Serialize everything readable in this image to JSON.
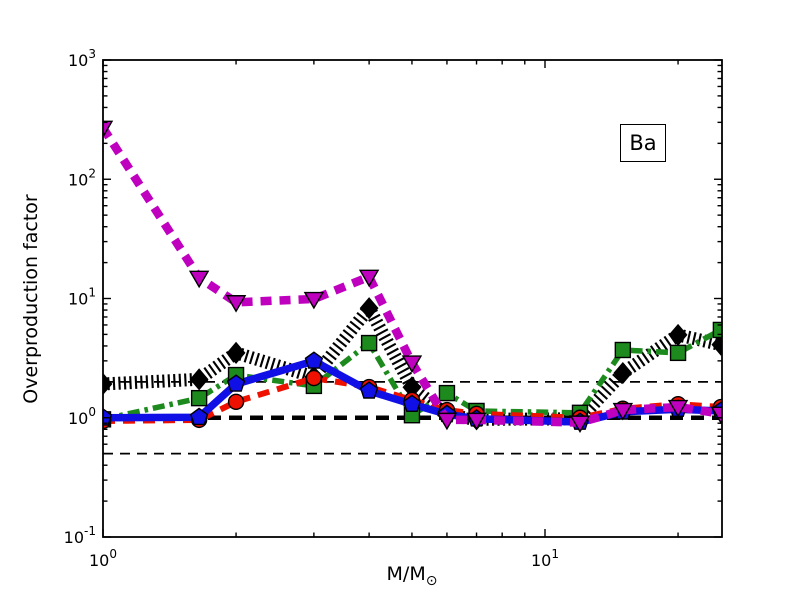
{
  "figure": {
    "background": "#ffffff",
    "ylabel": "Overproduction factor",
    "xlabel_main": "M/M",
    "xlabel_sub": "⊙",
    "annotation_box": "Ba"
  },
  "chart_data": {
    "type": "line",
    "title": "",
    "xlabel": "M/M⊙",
    "ylabel": "Overproduction factor",
    "x_scale": "log",
    "y_scale": "log",
    "xlim": [
      1,
      25.1
    ],
    "ylim": [
      0.1,
      1000
    ],
    "grid": false,
    "legend": "none",
    "annotation": "Ba",
    "x": [
      1,
      1.65,
      2,
      3,
      4,
      5,
      6,
      7,
      12,
      15,
      20,
      25
    ],
    "series": [
      {
        "name": "black-hatched-diamonds",
        "color": "#000000",
        "line": "hatched",
        "marker": "diamond",
        "values": [
          1.92,
          2.1,
          3.5,
          2.2,
          8.3,
          1.8,
          1.05,
          0.97,
          0.98,
          2.37,
          4.95,
          4.1
        ]
      },
      {
        "name": "green-dashdot-squares",
        "color": "#1d8a1d",
        "line": "dash-dot",
        "marker": "square",
        "values": [
          0.97,
          1.46,
          2.28,
          1.85,
          4.23,
          1.05,
          1.61,
          1.14,
          1.1,
          3.7,
          3.5,
          5.45
        ]
      },
      {
        "name": "red-dashed-circles",
        "color": "#ee1100",
        "line": "dashed",
        "marker": "circle",
        "values": [
          0.94,
          0.96,
          1.36,
          2.15,
          1.81,
          1.41,
          1.16,
          1.08,
          1.0,
          1.19,
          1.3,
          1.23
        ]
      },
      {
        "name": "blue-solid-pentagons",
        "color": "#1010e6",
        "line": "solid",
        "marker": "pentagon",
        "values": [
          1.0,
          1.01,
          1.92,
          2.99,
          1.68,
          1.3,
          1.07,
          0.98,
          0.92,
          1.12,
          1.18,
          1.14
        ]
      },
      {
        "name": "magenta-dashed-triangles",
        "color": "#bf00bf",
        "line": "dashed-thick",
        "marker": "triangle-down",
        "values": [
          270,
          14.9,
          9.3,
          9.9,
          15.2,
          2.9,
          0.96,
          0.96,
          0.91,
          1.16,
          1.23,
          1.08
        ]
      }
    ],
    "reference_lines": [
      {
        "y": 1.0,
        "color": "#000000",
        "style": "dashed-thick"
      },
      {
        "y": 2.0,
        "color": "#000000",
        "style": "dashed-thin"
      },
      {
        "y": 0.5,
        "color": "#000000",
        "style": "dashed-thin"
      }
    ],
    "x_tick_labels": [
      {
        "value": 1,
        "base": "10",
        "exp": "0"
      },
      {
        "value": 10,
        "base": "10",
        "exp": "1"
      }
    ],
    "y_tick_labels": [
      {
        "value": 0.1,
        "base": "10",
        "exp": "-1"
      },
      {
        "value": 1,
        "base": "10",
        "exp": "0"
      },
      {
        "value": 10,
        "base": "10",
        "exp": "1"
      },
      {
        "value": 100,
        "base": "10",
        "exp": "2"
      },
      {
        "value": 1000,
        "base": "10",
        "exp": "3"
      }
    ]
  }
}
